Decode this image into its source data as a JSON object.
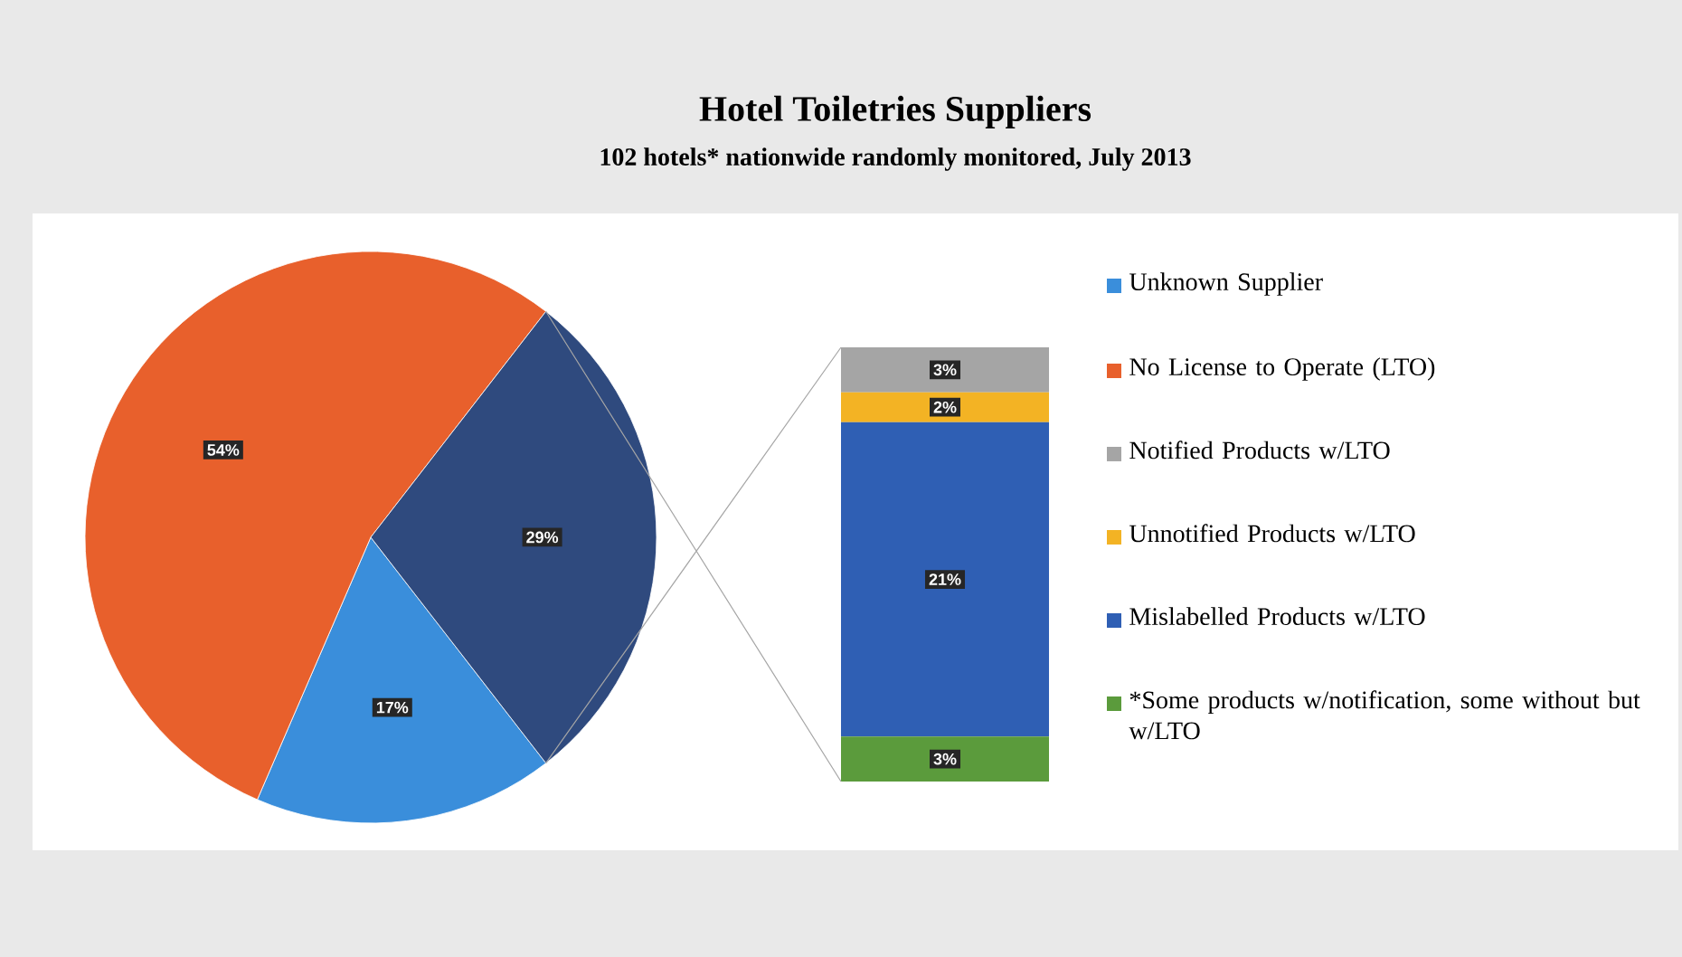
{
  "chart_data": [
    {
      "type": "pie",
      "title": "Hotel Toiletries Suppliers",
      "subtitle": "102 hotels* nationwide randomly monitored, July 2013",
      "categories": [
        "Unknown Supplier",
        "No License to Operate (LTO)",
        null
      ],
      "values": [
        17,
        54,
        29
      ],
      "value_labels": [
        "17%",
        "54%",
        "29%"
      ],
      "colors": [
        "#3a8edb",
        "#e8602c",
        "#2f4a7e"
      ],
      "legend": "right"
    },
    {
      "type": "bar",
      "stacked": true,
      "categories": [
        null
      ],
      "legend": "right",
      "series": [
        {
          "name": "*Some products w/notification, some without but w/LTO",
          "color": "#5b9b3c",
          "values": [
            3
          ],
          "value_labels": [
            "3%"
          ]
        },
        {
          "name": "Mislabelled Products w/LTO",
          "color": "#2f5fb4",
          "values": [
            21
          ],
          "value_labels": [
            "21%"
          ]
        },
        {
          "name": "Unnotified Products w/LTO",
          "color": "#f3b324",
          "values": [
            2
          ],
          "value_labels": [
            "2%"
          ]
        },
        {
          "name": "Notified Products w/LTO",
          "color": "#a5a5a5",
          "values": [
            3
          ],
          "value_labels": [
            "3%"
          ]
        }
      ]
    }
  ]
}
